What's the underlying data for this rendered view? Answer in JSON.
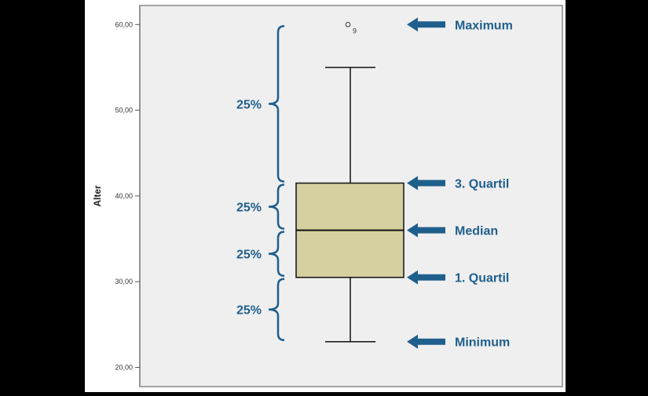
{
  "chart_data": {
    "type": "boxplot",
    "ylabel": "Alter",
    "ylim": [
      18,
      62
    ],
    "y_ticks": [
      {
        "value": 20,
        "label": "20,00"
      },
      {
        "value": 30,
        "label": "30,00"
      },
      {
        "value": 40,
        "label": "40,00"
      },
      {
        "value": 50,
        "label": "50,00"
      },
      {
        "value": 60,
        "label": "60,00"
      }
    ],
    "box": {
      "whisker_min": 23,
      "q1": 30.5,
      "median": 36,
      "q3": 41.5,
      "whisker_max": 55
    },
    "outliers": [
      {
        "value": 60,
        "label": "9"
      }
    ],
    "grid": false,
    "colors": {
      "box_fill": "#d6cfa0",
      "annotation": "#1f5f8c",
      "plot_bg": "#efefef",
      "page_bg": "#ffffff",
      "frame": "#888888"
    }
  },
  "annotations": [
    {
      "label": "Maximum",
      "value": 60
    },
    {
      "label": "3. Quartil",
      "value": 41.5
    },
    {
      "label": "Median",
      "value": 36
    },
    {
      "label": "1. Quartil",
      "value": 30.5
    },
    {
      "label": "Minimum",
      "value": 23
    }
  ],
  "brackets": [
    {
      "label": "25%",
      "from": 41.5,
      "to": 60
    },
    {
      "label": "25%",
      "from": 36,
      "to": 41.5
    },
    {
      "label": "25%",
      "from": 30.5,
      "to": 36
    },
    {
      "label": "25%",
      "from": 23,
      "to": 30.5
    }
  ]
}
